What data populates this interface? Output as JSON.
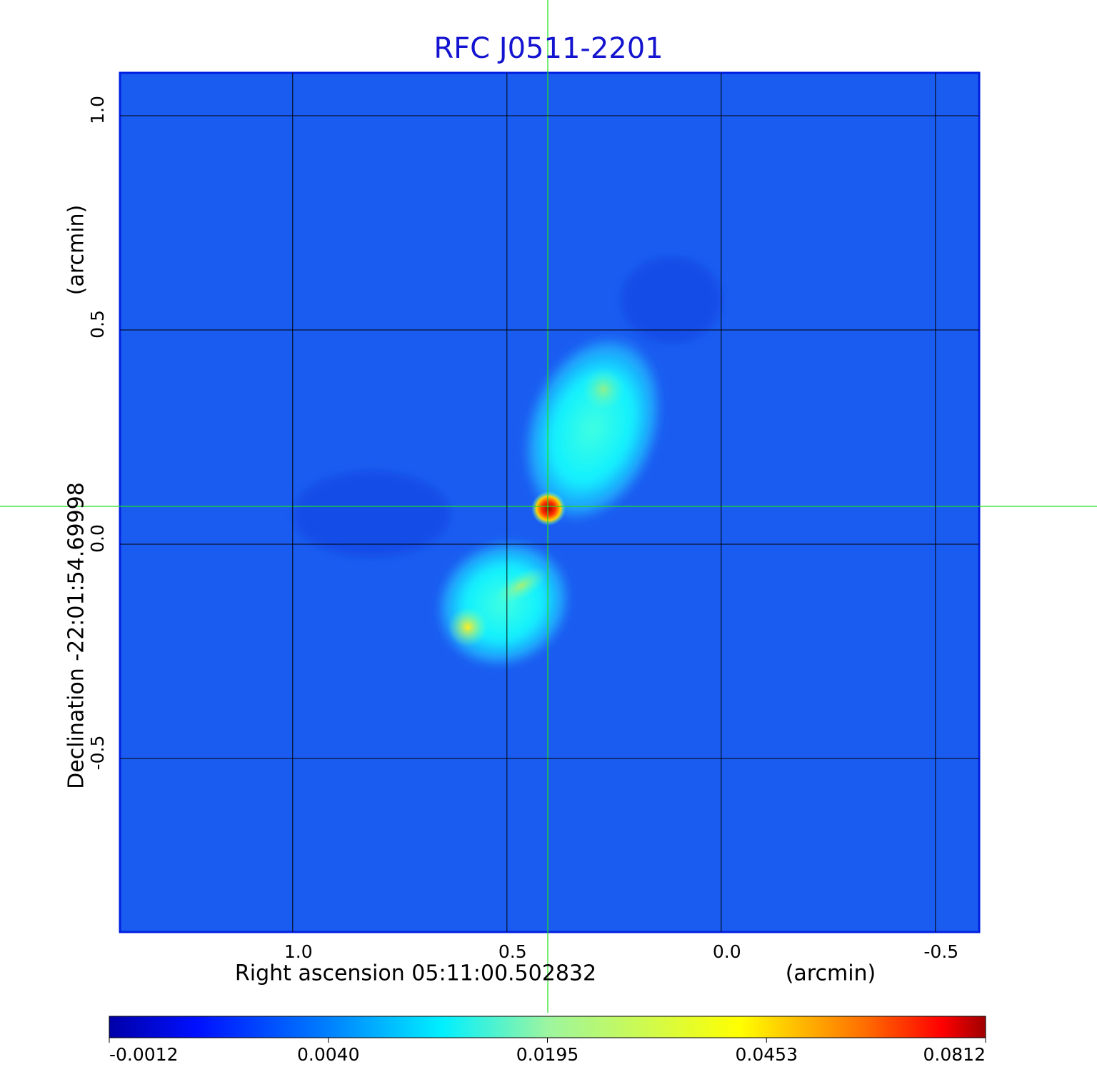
{
  "chart_data": {
    "type": "image",
    "title": "RFC J0511-2201",
    "x_label": "Right ascension  05:11:00.502832",
    "x_unit": "(arcmin)",
    "y_label": "Declination  -22:01:54.69998",
    "y_unit": "(arcmin)",
    "xlim": [
      1.403,
      -0.602
    ],
    "ylim": [
      -0.905,
      1.1
    ],
    "xticks": [
      {
        "value": 1,
        "label": "1.0"
      },
      0.5,
      {
        "value": 0,
        "label": "0.0"
      },
      -0.5
    ],
    "yticks": [
      {
        "value": 1,
        "label": "1.0"
      },
      0.5,
      {
        "value": 0,
        "label": "0.0"
      },
      -0.5
    ],
    "grid": true,
    "colorbar_ticks": [
      -0.0012,
      {
        "value": 0.004,
        "label": "0.0040"
      },
      0.0195,
      0.0453,
      0.0812
    ]
  }
}
